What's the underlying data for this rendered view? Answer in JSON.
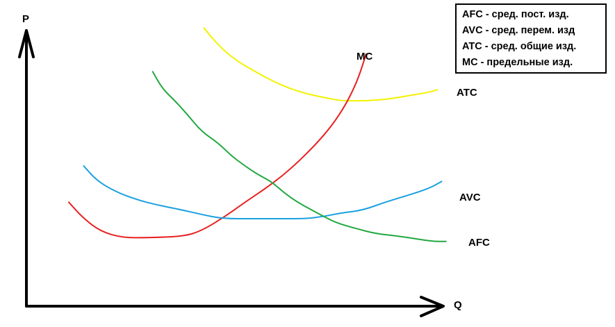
{
  "chart_data": {
    "type": "line",
    "title": "",
    "xlabel": "Q",
    "ylabel": "P",
    "xlim": [
      0,
      100
    ],
    "ylim": [
      0,
      100
    ],
    "grid": false,
    "legend_placement": "top-right",
    "legend": [
      "AFC - сред. пост. изд.",
      "AVC - сред. перем. изд",
      "ATC - сред. общие изд.",
      "MC - предельные изд."
    ],
    "series": [
      {
        "name": "ATC",
        "color": "#f2f200",
        "points": [
          [
            40.6,
            98
          ],
          [
            44,
            91.7
          ],
          [
            48,
            86.5
          ],
          [
            53,
            82
          ],
          [
            58,
            78
          ],
          [
            63,
            75.2
          ],
          [
            68,
            73.5
          ],
          [
            72,
            72.3
          ],
          [
            76,
            72.3
          ],
          [
            80,
            72.5
          ],
          [
            84,
            73.2
          ],
          [
            88,
            74.3
          ],
          [
            92,
            75.3
          ],
          [
            94,
            76.2
          ]
        ]
      },
      {
        "name": "MC",
        "color": "#e82020",
        "points": [
          [
            9.7,
            36.6
          ],
          [
            13,
            31
          ],
          [
            17,
            26.3
          ],
          [
            22,
            24.1
          ],
          [
            28,
            24.1
          ],
          [
            36,
            24.6
          ],
          [
            40,
            26.5
          ],
          [
            45,
            31.1
          ],
          [
            50,
            36.6
          ],
          [
            56,
            42.8
          ],
          [
            61,
            49.1
          ],
          [
            66,
            56.6
          ],
          [
            70,
            63.8
          ],
          [
            73,
            70.8
          ],
          [
            75.5,
            78.6
          ],
          [
            77,
            85.2
          ],
          [
            77.7,
            88.8
          ]
        ]
      },
      {
        "name": "AVC",
        "color": "#1aa0e0",
        "points": [
          [
            13.1,
            49.4
          ],
          [
            16,
            44.4
          ],
          [
            20,
            40.6
          ],
          [
            25,
            37.6
          ],
          [
            30,
            35.6
          ],
          [
            35,
            34.1
          ],
          [
            40,
            32.3
          ],
          [
            45,
            30.8
          ],
          [
            52,
            30.8
          ],
          [
            58,
            30.8
          ],
          [
            64,
            30.8
          ],
          [
            68,
            31.6
          ],
          [
            72,
            32.8
          ],
          [
            77,
            33.8
          ],
          [
            82,
            36.6
          ],
          [
            87,
            38.9
          ],
          [
            92,
            41.4
          ],
          [
            95,
            43.9
          ]
        ]
      },
      {
        "name": "AFC",
        "color": "#20a840",
        "points": [
          [
            28.9,
            82.6
          ],
          [
            31,
            76.8
          ],
          [
            34,
            72.3
          ],
          [
            37,
            67.2
          ],
          [
            40,
            61.6
          ],
          [
            44,
            57.3
          ],
          [
            47,
            52.8
          ],
          [
            50,
            49.4
          ],
          [
            53,
            46.3
          ],
          [
            56,
            43.9
          ],
          [
            59,
            39.9
          ],
          [
            62,
            36.6
          ],
          [
            65,
            34.1
          ],
          [
            68,
            31.6
          ],
          [
            71,
            29.3
          ],
          [
            75,
            27.5
          ],
          [
            80,
            25.5
          ],
          [
            85,
            24.7
          ],
          [
            90,
            23.5
          ],
          [
            93,
            22.8
          ],
          [
            96,
            22.8
          ]
        ]
      }
    ]
  }
}
